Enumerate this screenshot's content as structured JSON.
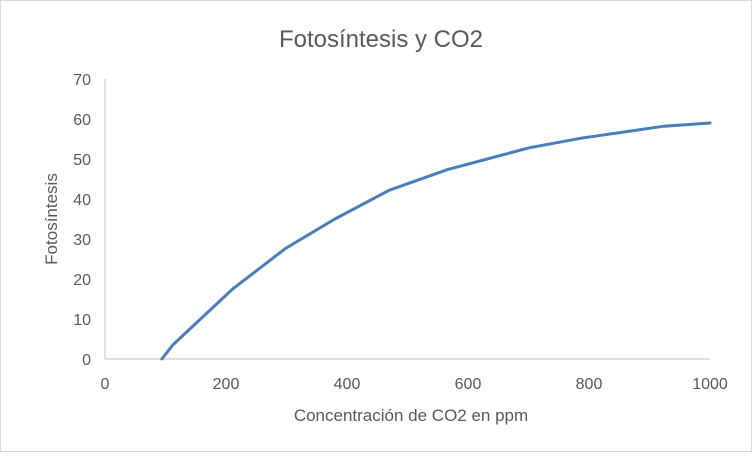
{
  "chart_data": {
    "type": "line",
    "title": "Fotosíntesis y CO2",
    "xlabel": "Concentración de CO2 en ppm",
    "ylabel": "Fotosíntesis",
    "xlim": [
      0,
      1000
    ],
    "ylim": [
      0,
      70
    ],
    "xticks": [
      0,
      200,
      400,
      600,
      800,
      1000
    ],
    "yticks": [
      0,
      10,
      20,
      30,
      40,
      50,
      60,
      70
    ],
    "grid": false,
    "legend": "none",
    "series": [
      {
        "name": "Fotosíntesis",
        "color": "#4a7ebb",
        "x": [
          94,
          112,
          211,
          299,
          380,
          470,
          567,
          701,
          787,
          924,
          1000
        ],
        "y": [
          0,
          3.5,
          17.5,
          27.7,
          35,
          42.2,
          47.4,
          52.8,
          55.2,
          58.2,
          59
        ]
      }
    ]
  }
}
